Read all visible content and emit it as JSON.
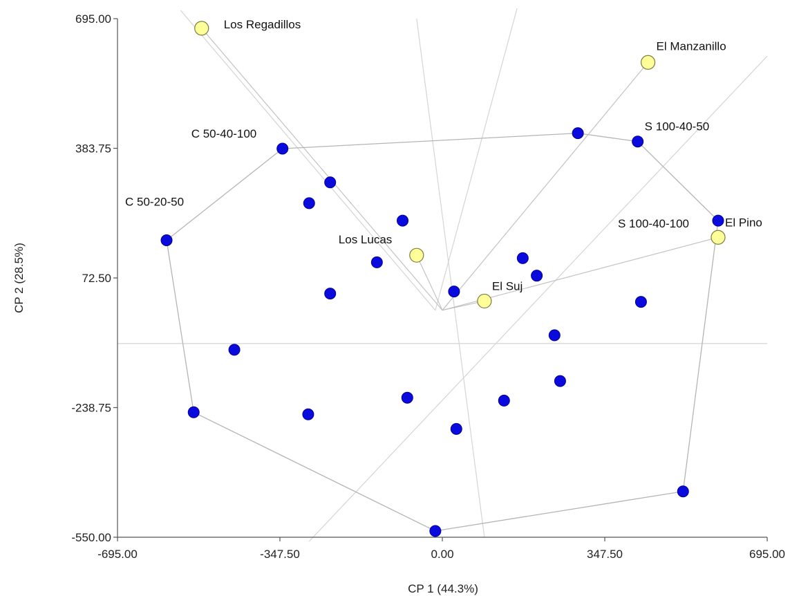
{
  "chart_data": {
    "type": "scatter",
    "title": "",
    "xlabel": "CP 1 (44.3%)",
    "ylabel": "CP 2 (28.5%)",
    "xlim": [
      -695.0,
      695.0
    ],
    "ylim": [
      -550.0,
      695.0
    ],
    "x_ticks": [
      {
        "value": -695.0,
        "label": "-695.00"
      },
      {
        "value": -347.5,
        "label": "-347.50"
      },
      {
        "value": 0.0,
        "label": "0.00"
      },
      {
        "value": 347.5,
        "label": "347.50"
      },
      {
        "value": 695.0,
        "label": "695.00"
      }
    ],
    "y_ticks": [
      {
        "value": -550.0,
        "label": "-550.00"
      },
      {
        "value": -238.75,
        "label": "-238.75"
      },
      {
        "value": 72.5,
        "label": "72.50"
      },
      {
        "value": 383.75,
        "label": "383.75"
      },
      {
        "value": 695.0,
        "label": "695.00"
      }
    ],
    "grid": false,
    "legend": "none",
    "colors": {
      "points": "#0a0adc",
      "sites_fill": "#ffff99",
      "sites_stroke": "#7a7a40",
      "hull": "#b4b4b4",
      "vectors": "#d4d4d4",
      "axes": "#555555"
    },
    "series": [
      {
        "points": [
          {
            "x": -590,
            "y": 163,
            "label": "C 50-20-50"
          },
          {
            "x": -342,
            "y": 383,
            "label": "C 50-40-100"
          },
          {
            "x": -240,
            "y": 302
          },
          {
            "x": -285,
            "y": 252
          },
          {
            "x": -85,
            "y": 210
          },
          {
            "x": -140,
            "y": 110
          },
          {
            "x": -240,
            "y": 35
          },
          {
            "x": -445,
            "y": -100
          },
          {
            "x": -532,
            "y": -250
          },
          {
            "x": -287,
            "y": -255
          },
          {
            "x": -75,
            "y": -215
          },
          {
            "x": 30,
            "y": -290
          },
          {
            "x": -15,
            "y": -535
          },
          {
            "x": 132,
            "y": -222
          },
          {
            "x": 252,
            "y": -175
          },
          {
            "x": 240,
            "y": -65
          },
          {
            "x": 425,
            "y": 15
          },
          {
            "x": 172,
            "y": 120
          },
          {
            "x": 202,
            "y": 78
          },
          {
            "x": 25,
            "y": 40
          },
          {
            "x": 290,
            "y": 420
          },
          {
            "x": 418,
            "y": 400,
            "label": "S 100-40-50"
          },
          {
            "x": 590,
            "y": 210,
            "label": "S 100-40-100"
          },
          {
            "x": 515,
            "y": -440
          }
        ]
      },
      {
        "points": [
          {
            "x": -515,
            "y": 672,
            "label": "Los Regadillos"
          },
          {
            "x": 440,
            "y": 590,
            "label": "El Manzanillo"
          },
          {
            "x": -55,
            "y": 127,
            "label": "Los Lucas"
          },
          {
            "x": 90,
            "y": 17,
            "label": "El Suj"
          },
          {
            "x": 590,
            "y": 170,
            "label": "El Pino"
          }
        ]
      }
    ],
    "hull_order": [
      [
        -590,
        163
      ],
      [
        -342,
        383
      ],
      [
        290,
        420
      ],
      [
        418,
        400
      ],
      [
        590,
        210
      ],
      [
        515,
        -440
      ],
      [
        -15,
        -535
      ],
      [
        -532,
        -250
      ]
    ],
    "vectors": [
      {
        "to": [
          -515,
          672
        ]
      },
      {
        "to": [
          440,
          590
        ]
      },
      {
        "to": [
          -55,
          127
        ]
      },
      {
        "to": [
          90,
          17
        ]
      },
      {
        "to": [
          590,
          170
        ]
      }
    ],
    "reference_lines": [
      [
        [
          -695,
          -85
        ],
        [
          695,
          -85
        ]
      ],
      [
        [
          -55,
          695
        ],
        [
          90,
          -550
        ]
      ],
      [
        [
          -560,
          715
        ],
        [
          -15,
          -5
        ]
      ],
      [
        [
          -285,
          -560
        ],
        [
          695,
          605
        ]
      ],
      [
        [
          160,
          720
        ],
        [
          -15,
          -5
        ]
      ]
    ]
  }
}
